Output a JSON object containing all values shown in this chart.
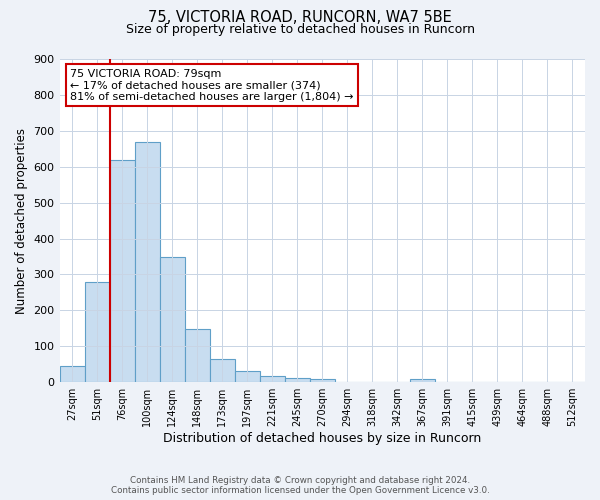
{
  "title1": "75, VICTORIA ROAD, RUNCORN, WA7 5BE",
  "title2": "Size of property relative to detached houses in Runcorn",
  "xlabel": "Distribution of detached houses by size in Runcorn",
  "ylabel": "Number of detached properties",
  "bar_labels": [
    "27sqm",
    "51sqm",
    "76sqm",
    "100sqm",
    "124sqm",
    "148sqm",
    "173sqm",
    "197sqm",
    "221sqm",
    "245sqm",
    "270sqm",
    "294sqm",
    "318sqm",
    "342sqm",
    "367sqm",
    "391sqm",
    "415sqm",
    "439sqm",
    "464sqm",
    "488sqm",
    "512sqm"
  ],
  "bar_values": [
    45,
    280,
    620,
    670,
    348,
    148,
    65,
    32,
    18,
    12,
    9,
    0,
    0,
    0,
    9,
    0,
    0,
    0,
    0,
    0,
    0
  ],
  "bar_color": "#c8ddf0",
  "bar_edge_color": "#5f9fc8",
  "vline_color": "#cc0000",
  "annotation_title": "75 VICTORIA ROAD: 79sqm",
  "annotation_line1": "← 17% of detached houses are smaller (374)",
  "annotation_line2": "81% of semi-detached houses are larger (1,804) →",
  "annotation_box_color": "#ffffff",
  "annotation_box_edge": "#cc0000",
  "ylim": [
    0,
    900
  ],
  "yticks": [
    0,
    100,
    200,
    300,
    400,
    500,
    600,
    700,
    800,
    900
  ],
  "footer1": "Contains HM Land Registry data © Crown copyright and database right 2024.",
  "footer2": "Contains public sector information licensed under the Open Government Licence v3.0.",
  "bg_color": "#eef2f8",
  "plot_bg_color": "#ffffff",
  "grid_color": "#c8d4e4"
}
